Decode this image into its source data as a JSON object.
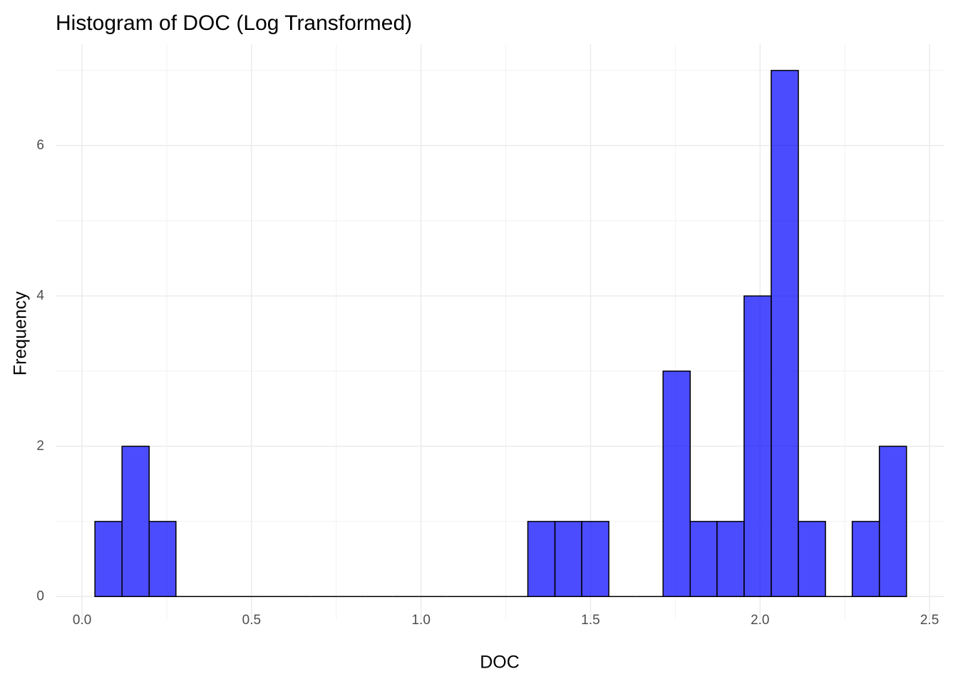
{
  "chart_data": {
    "type": "histogram",
    "title": "Histogram of DOC (Log Transformed)",
    "x_label": "DOC",
    "y_label": "Frequency",
    "bins": [
      0.038,
      0.118,
      0.198,
      0.277,
      0.357,
      0.437,
      0.517,
      0.597,
      0.676,
      0.756,
      0.836,
      0.916,
      0.996,
      1.075,
      1.155,
      1.235,
      1.315,
      1.395,
      1.474,
      1.554,
      1.634,
      1.714,
      1.794,
      1.873,
      1.953,
      2.033,
      2.113,
      2.193,
      2.272,
      2.352,
      2.432
    ],
    "values": [
      1,
      2,
      1,
      0,
      0,
      0,
      0,
      0,
      0,
      0,
      0,
      0,
      0,
      0,
      0,
      0,
      1,
      1,
      1,
      0,
      0,
      3,
      1,
      1,
      4,
      7,
      1,
      0,
      1,
      2
    ],
    "color": "#0000ff",
    "opacity": 0.7,
    "edge_color": "#000000",
    "xlim": [
      -0.078,
      2.544
    ],
    "ylim": [
      -0.31,
      7.35
    ],
    "xticks": [
      {
        "value": 0,
        "label": "0.0"
      },
      0.5,
      {
        "value": 1,
        "label": "1.0"
      },
      1.5,
      {
        "value": 2,
        "label": "2.0"
      },
      2.5
    ],
    "yticks": [
      0,
      2,
      4,
      6
    ],
    "x_minor_ticks": [
      0.25,
      0.75,
      1.25,
      1.75,
      2.25
    ],
    "y_minor_ticks": [
      1,
      3,
      5,
      7
    ],
    "grid": true
  }
}
